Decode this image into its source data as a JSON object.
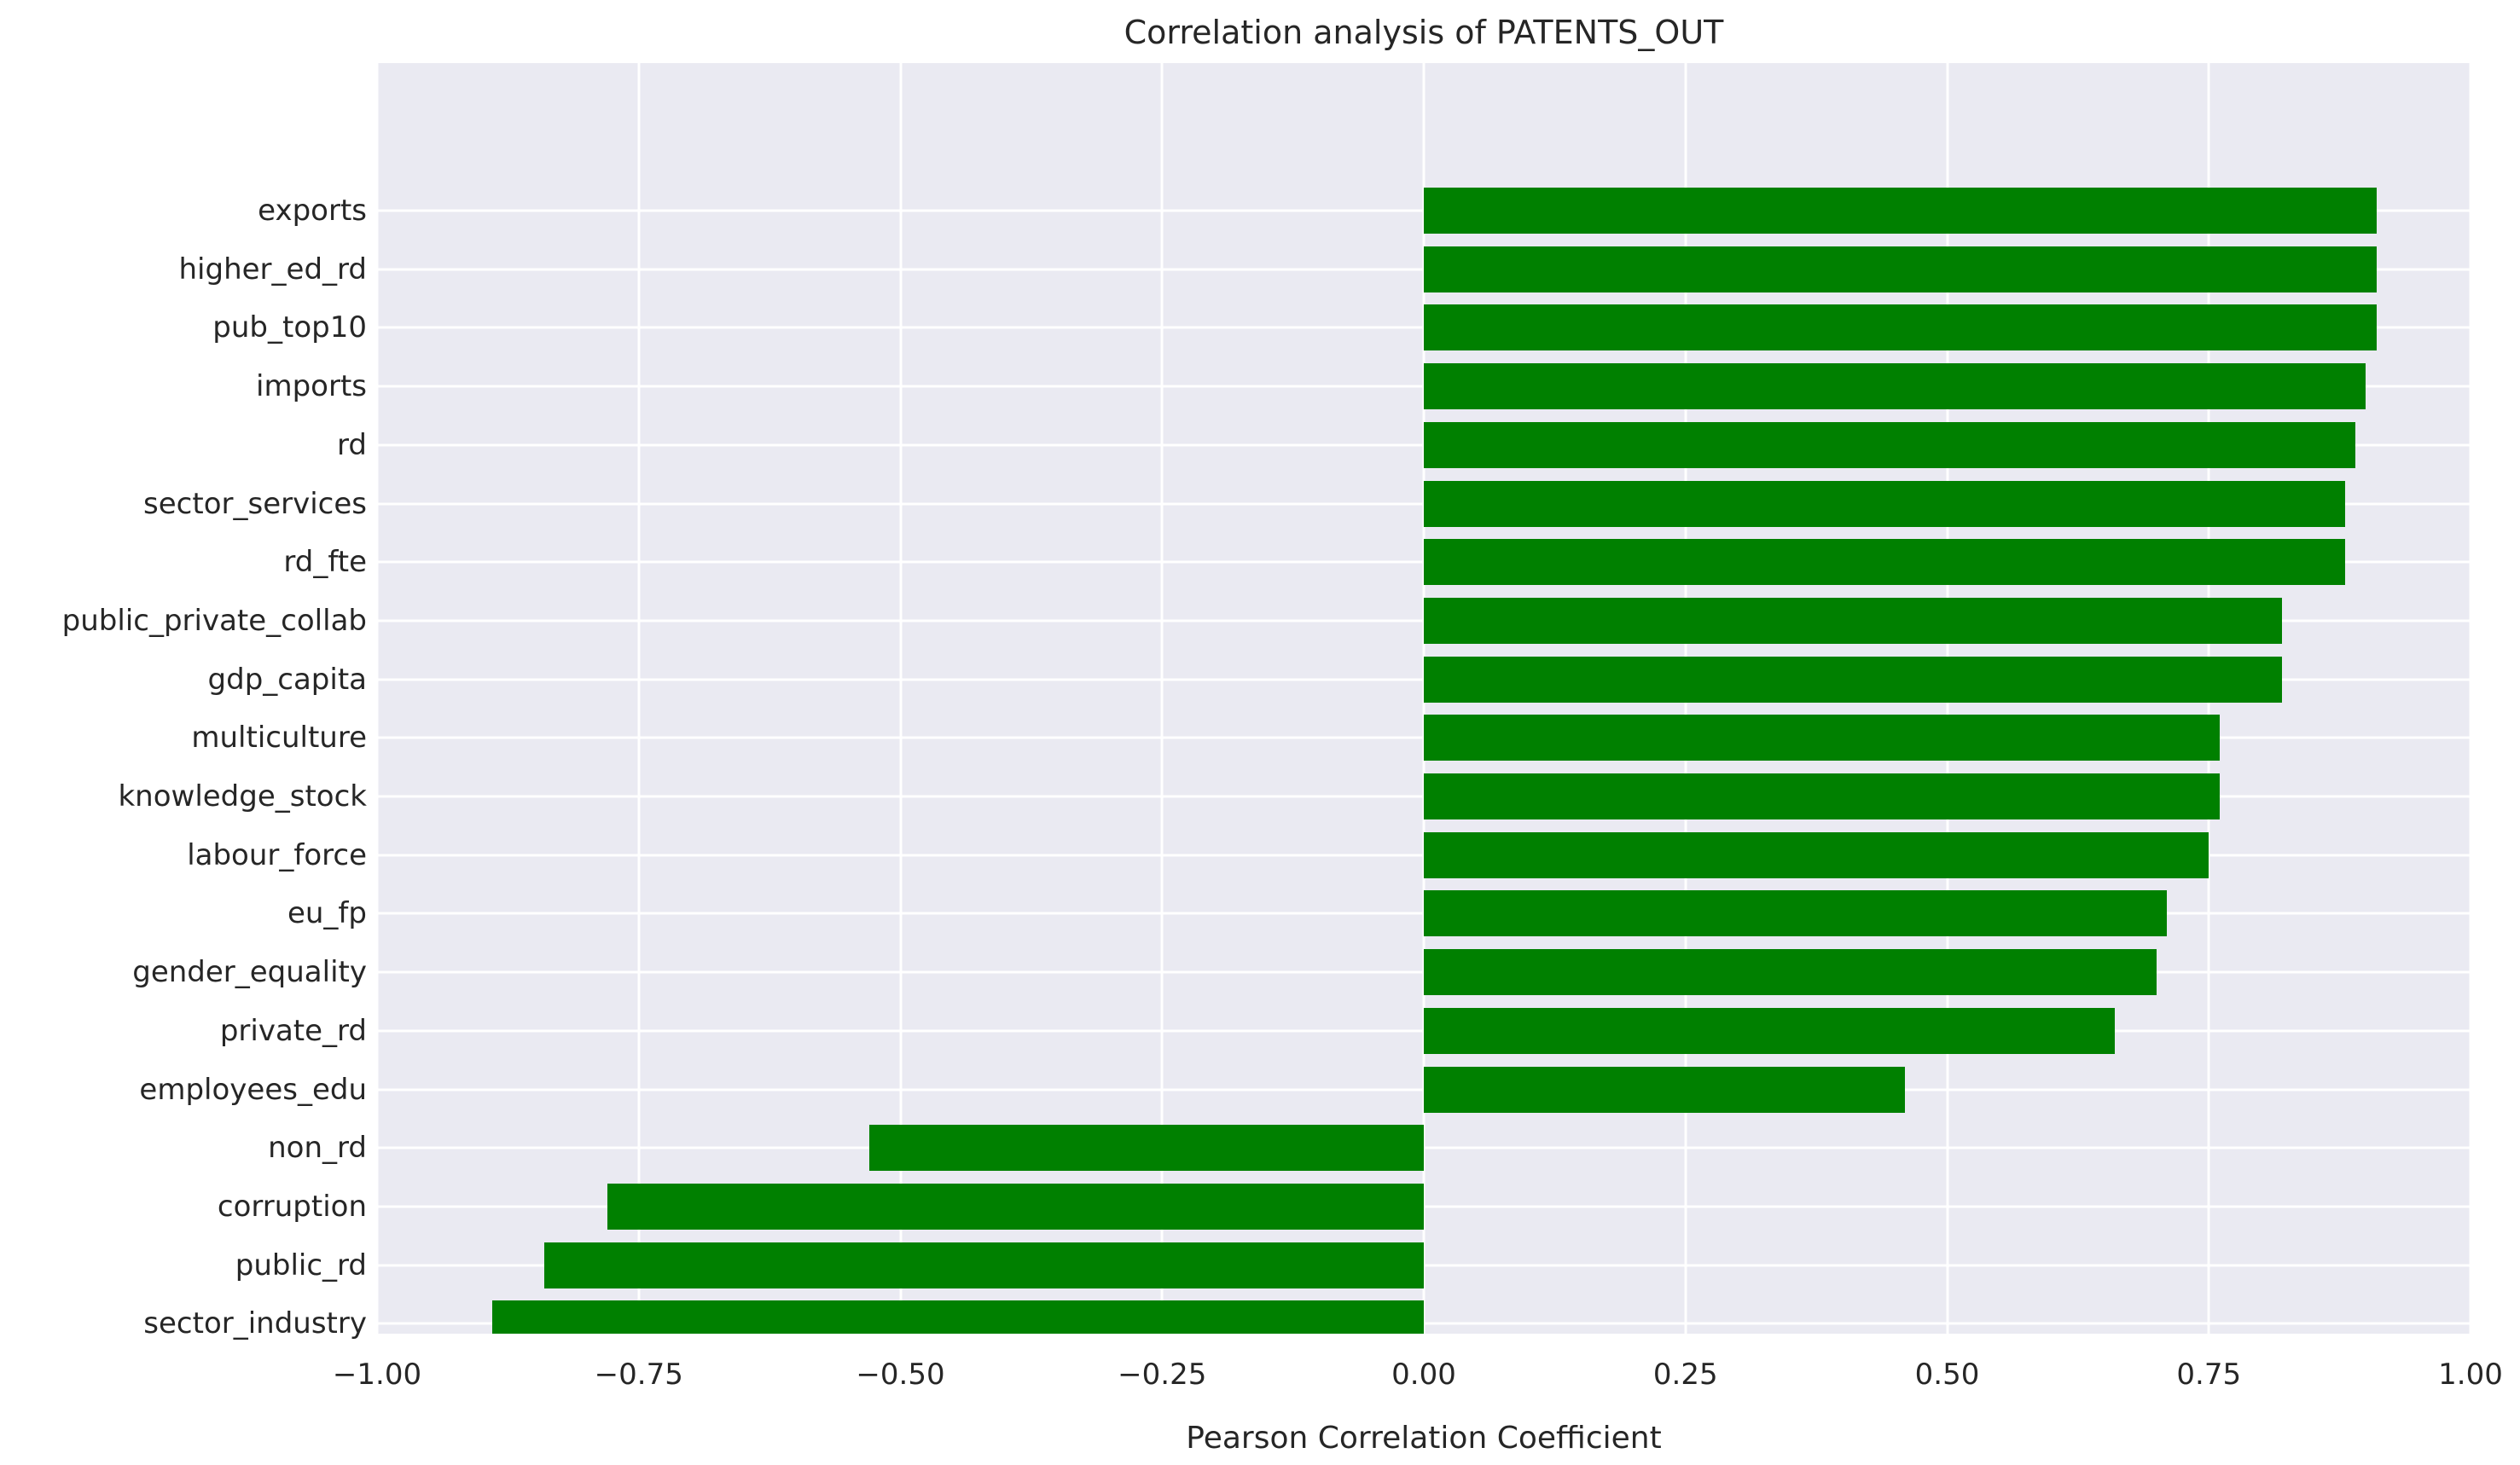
{
  "figure": {
    "title": "Correlation analysis of PATENTS_OUT",
    "xlabel": "Pearson Correlation Coefficient"
  },
  "axes": {
    "x_tick_labels": [
      "−1.00",
      "−0.75",
      "−0.50",
      "−0.25",
      "0.00",
      "0.25",
      "0.50",
      "0.75",
      "1.00"
    ]
  },
  "colors": {
    "bar": "#008000",
    "plot_background": "#eaeaf2",
    "gridline": "#ffffff",
    "figure_background": "#ffffff",
    "text": "#262626"
  },
  "chart_data": {
    "type": "bar",
    "orientation": "horizontal",
    "title": "Correlation analysis of PATENTS_OUT",
    "xlabel": "Pearson Correlation Coefficient",
    "ylabel": "",
    "xlim": [
      -1.0,
      1.0
    ],
    "x_ticks": [
      -1.0,
      -0.75,
      -0.5,
      -0.25,
      0.0,
      0.25,
      0.5,
      0.75,
      1.0
    ],
    "grid": true,
    "legend": false,
    "bar_color": "green",
    "categories": [
      "exports",
      "higher_ed_rd",
      "pub_top10",
      "imports",
      "rd",
      "sector_services",
      "rd_fte",
      "public_private_collab",
      "gdp_capita",
      "multiculture",
      "knowledge_stock",
      "labour_force",
      "eu_fp",
      "gender_equality",
      "private_rd",
      "employees_edu",
      "non_rd",
      "corruption",
      "public_rd",
      "sector_industry"
    ],
    "values": [
      0.91,
      0.91,
      0.91,
      0.9,
      0.89,
      0.88,
      0.88,
      0.82,
      0.82,
      0.76,
      0.76,
      0.75,
      0.71,
      0.7,
      0.66,
      0.46,
      -0.53,
      -0.78,
      -0.84,
      -0.89
    ]
  }
}
